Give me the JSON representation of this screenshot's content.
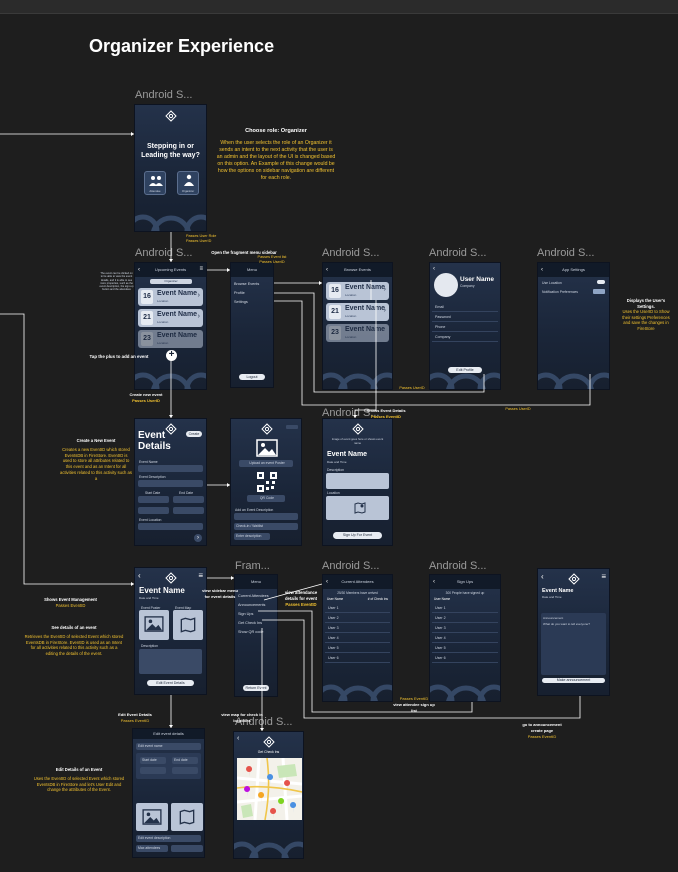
{
  "page_title": "Organizer Experience",
  "frame_labels": {
    "role": "Android S...",
    "upcoming": "Android S...",
    "browse": "Android S...",
    "profile": "Android S...",
    "settings": "Android S...",
    "event_details": "Android S...",
    "manage_menu": "Fram...",
    "attendees": "Android S...",
    "signups": "Android S...",
    "map": "Android S..."
  },
  "role_screen": {
    "line1": "Stepping in or",
    "line2": "Leading the way?",
    "attendee": "Attendee",
    "organizer": "Organizer"
  },
  "role_note": {
    "heading": "Choose role: Organizer",
    "body": "When the user selects the role of an Organizer it sends an intent to the next activity that the user is an admin and the layout of the UI is changed based on this option. An Example of this change would be how the options on sidebar navigation are different for each role."
  },
  "upcoming_screen": {
    "header": "Upcoming Events",
    "filter": "Organizer",
    "events": [
      {
        "day": "16",
        "name": "Event Name",
        "sub": "Location"
      },
      {
        "day": "21",
        "name": "Event Name",
        "sub": "Location"
      },
      {
        "day": "23",
        "name": "Event Name",
        "sub": "Location"
      }
    ],
    "side_note": "The event can be clicked on to be able to view the event details, and it is able to see more properties, such as the event description, the sign-up button and the attendees"
  },
  "menu_screen": {
    "header": "Menu",
    "items": [
      "Browse Events",
      "Profile",
      "Settings"
    ],
    "logout": "Logout"
  },
  "browse_screen": {
    "header": "Browse Events",
    "events": [
      {
        "day": "16",
        "name": "Event Name",
        "sub": "Location"
      },
      {
        "day": "21",
        "name": "Event Name",
        "sub": "Location"
      },
      {
        "day": "23",
        "name": "Event Name",
        "sub": "Location"
      }
    ]
  },
  "profile_screen": {
    "name": "User Name",
    "company": "Company",
    "fields": [
      "Email",
      "Password",
      "Phone",
      "Company"
    ],
    "edit": "Edit Profile"
  },
  "settings_screen": {
    "header": "App Settings",
    "opt1": "Use Location",
    "opt2": "Notification Preferences"
  },
  "settings_note": {
    "heading": "Displays the User's Settings.",
    "body": "Uses the UserID to Show their settings Preferences and save the changes in FireStore"
  },
  "create_screen": {
    "title1": "Event",
    "title2": "Details",
    "create": "Create",
    "fields": [
      "Event Name",
      "Event Description",
      "Start Date",
      "End Date",
      "Max Attendees",
      "Event Location"
    ]
  },
  "poster_screen": {
    "upload": "Upload an event Poster",
    "qr": "QR Code",
    "fields": [
      "Add an Event Description",
      "Check-in / Waitlist",
      "Enter description"
    ]
  },
  "event_view_screen": {
    "image_note": "Image of event goes here or shows event name",
    "name": "Event Name",
    "sub": "Date and Time",
    "desc": "Description",
    "location": "Location",
    "signup": "Sign Up For Event"
  },
  "manage_screen": {
    "name": "Event Name",
    "sub": "Date and Time",
    "poster": "Event Poster",
    "map": "Event Map",
    "desc": "Description",
    "edit": "Edit Event Details"
  },
  "manage_menu": {
    "header": "Menu",
    "items": [
      "Current Attendees",
      "Announcements",
      "Sign Ups",
      "Get Check Ins",
      "Show QR code"
    ],
    "back": "Return Event"
  },
  "attendees_screen": {
    "header": "Current Attendees",
    "count": "25/30 Members have arrived",
    "col1": "User Name",
    "col2": "# of Check ins",
    "users": [
      "User 1",
      "User 2",
      "User 3",
      "User 4",
      "User 5",
      "User 6"
    ]
  },
  "signups_screen": {
    "header": "Sign Ups",
    "count": "300 People have signed up",
    "col": "User Name",
    "users": [
      "User 1",
      "User 2",
      "User 3",
      "User 4",
      "User 5",
      "User 6"
    ]
  },
  "announce_screen": {
    "name": "Event Name",
    "sub": "Date and Time",
    "field_label": "Announcement",
    "field_text": "What do you want to tell everyone?",
    "send": "Make announcement"
  },
  "edit_screen": {
    "header": "Edit event details",
    "fields": [
      "Edit event name",
      "Start date",
      "End date",
      "Edit event description",
      "Max attendees"
    ]
  },
  "map_screen": {
    "header": "Get Check Ins"
  },
  "annotations": {
    "passes_role": "Passes User Role Passes UserID",
    "open_menu": "Open the fragment menu sidebar",
    "passes_event_list": "Passes Event list Passes UserID",
    "tap_plus": "Tap the plus to add an event",
    "create_new": "Create new event",
    "create_new_pass": "Passes UserID",
    "passes_userid_1": "Passes UserID",
    "passes_userid_2": "Passes UserID",
    "shows_details": "Shows Event Details",
    "shows_details_pass": "Passes EventID",
    "create_heading": "Create a New Event",
    "create_body": "Creates a new EventID which stored EventsDB in FireStore. EventID is used to store all attributes related to this event and as an Intent for all activities related to this activity such as a",
    "shows_manage": "Shows Event Management",
    "shows_manage_pass": "Passes EventID",
    "see_heading": "See details of an event",
    "see_body": "Retrieves the EventID of selected Event which stored EventsDB in FireStore. EventID is used as an Intent for all activities related to this activity such as a editing the details of the event.",
    "view_sidebar": "view sidebar menu for event details",
    "view_attendance": "view attendance details for event",
    "view_attendance_pass": "Passes EventID",
    "passes_eventid_signup": "Passes EventID",
    "view_signup": "view attendee sign up list",
    "go_announce": "go to announcement create page",
    "go_announce_pass": "Passes EventID",
    "edit_details": "Edit Event Details",
    "edit_details_pass": "Passes EventID",
    "view_map": "view map for check in locations",
    "edit_heading": "Edit Details of an Event",
    "edit_body": "Uses the EventID of selected Event which stored EventsDB in FireStore and let's User Edit and change the attributes of the Event."
  }
}
